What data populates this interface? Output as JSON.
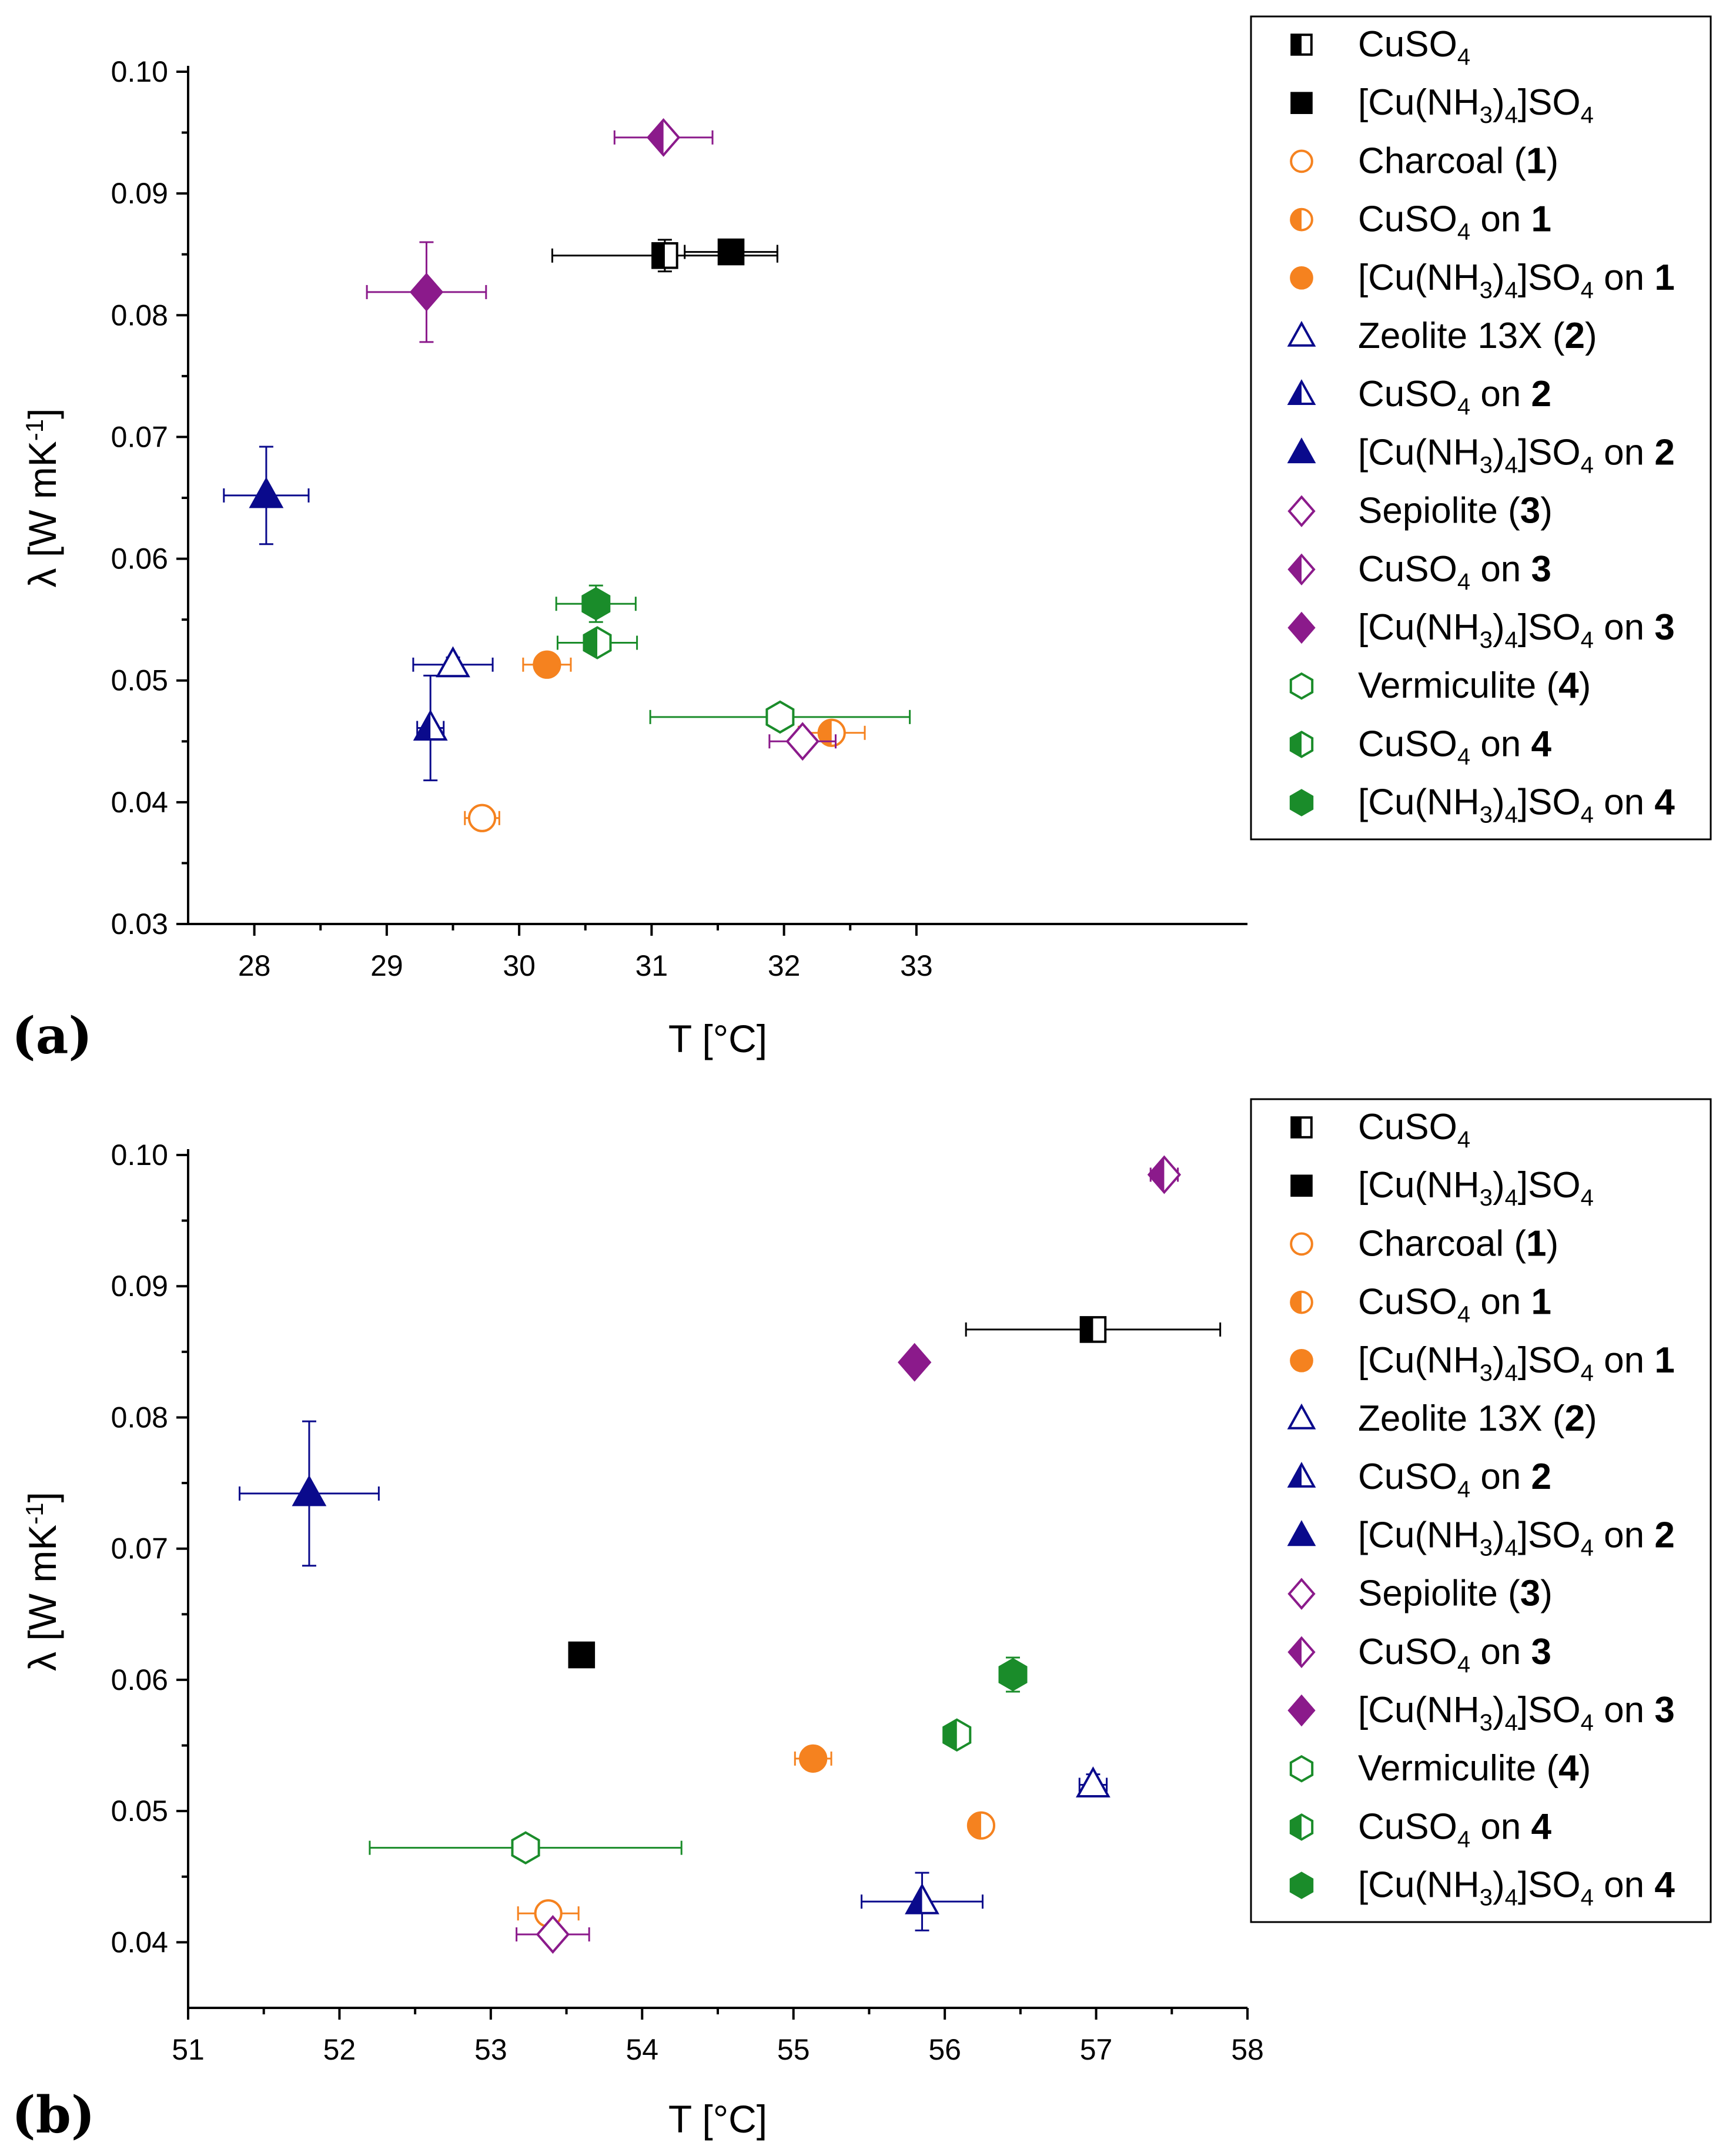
{
  "colors": {
    "black": "#000000",
    "orange": "#F5821F",
    "navy": "#0A0A8C",
    "purple": "#8B1A8B",
    "green": "#1A8C2A"
  },
  "legend_entries": [
    {
      "label": "CuSO4",
      "marker": "square",
      "fill": "half",
      "color": "black"
    },
    {
      "label": "[Cu(NH3)4]SO4",
      "marker": "square",
      "fill": "full",
      "color": "black"
    },
    {
      "label": "Charcoal (1)",
      "marker": "circle",
      "fill": "open",
      "color": "orange"
    },
    {
      "label": "CuSO4 on 1",
      "marker": "circle",
      "fill": "half",
      "color": "orange"
    },
    {
      "label": "[Cu(NH3)4]SO4 on 1",
      "marker": "circle",
      "fill": "full",
      "color": "orange"
    },
    {
      "label": "Zeolite 13X (2)",
      "marker": "triangle",
      "fill": "open",
      "color": "navy"
    },
    {
      "label": "CuSO4 on 2",
      "marker": "triangle",
      "fill": "half",
      "color": "navy"
    },
    {
      "label": "[Cu(NH3)4]SO4 on 2",
      "marker": "triangle",
      "fill": "full",
      "color": "navy"
    },
    {
      "label": "Sepiolite (3)",
      "marker": "diamond",
      "fill": "open",
      "color": "purple"
    },
    {
      "label": "CuSO4 on 3",
      "marker": "diamond",
      "fill": "half",
      "color": "purple"
    },
    {
      "label": "[Cu(NH3)4]SO4 on 3",
      "marker": "diamond",
      "fill": "full",
      "color": "purple"
    },
    {
      "label": "Vermiculite (4)",
      "marker": "hexagon",
      "fill": "open",
      "color": "green"
    },
    {
      "label": "CuSO4 on 4",
      "marker": "hexagon",
      "fill": "half",
      "color": "green"
    },
    {
      "label": "[Cu(NH3)4]SO4 on 4",
      "marker": "hexagon",
      "fill": "full",
      "color": "green"
    }
  ],
  "chart_data": [
    {
      "type": "scatter",
      "panel_label": "(a)",
      "xlabel": "T [°C]",
      "ylabel": "λ [W mK-1]",
      "xlim": [
        27.5,
        35.5
      ],
      "ylim": [
        0.03,
        0.1
      ],
      "xticks": [
        28,
        29,
        30,
        31,
        32,
        33
      ],
      "yticks": [
        0.03,
        0.04,
        0.05,
        0.06,
        0.07,
        0.08,
        0.09,
        0.1
      ],
      "ytick_labels": [
        "0.03",
        "0.04",
        "0.05",
        "0.06",
        "0.07",
        "0.08",
        "0.09",
        "0.10"
      ],
      "points": [
        {
          "series": "CuSO4",
          "x": 31.1,
          "y": 0.0849,
          "xerr": 0.85,
          "yerr": 0.0013
        },
        {
          "series": "[Cu(NH3)4]SO4",
          "x": 31.6,
          "y": 0.0852,
          "xerr": 0.35,
          "yerr": 0.0006
        },
        {
          "series": "Charcoal (1)",
          "x": 29.72,
          "y": 0.0387,
          "xerr": 0.13,
          "yerr": 0.0006
        },
        {
          "series": "CuSO4 on 1",
          "x": 32.36,
          "y": 0.0457,
          "xerr": 0.25,
          "yerr": 0.0006
        },
        {
          "series": "[Cu(NH3)4]SO4 on 1",
          "x": 30.21,
          "y": 0.0513,
          "xerr": 0.18,
          "yerr": 0.0006
        },
        {
          "series": "Zeolite 13X (2)",
          "x": 29.5,
          "y": 0.0513,
          "xerr": 0.3,
          "yerr": 0.0006
        },
        {
          "series": "CuSO4 on 2",
          "x": 29.33,
          "y": 0.0461,
          "xerr": 0.1,
          "yerr": 0.0043
        },
        {
          "series": "[Cu(NH3)4]SO4 on 2",
          "x": 28.09,
          "y": 0.0652,
          "xerr": 0.32,
          "yerr": 0.004
        },
        {
          "series": "Sepiolite (3)",
          "x": 32.14,
          "y": 0.045,
          "xerr": 0.25,
          "yerr": 0.0006
        },
        {
          "series": "CuSO4 on 3",
          "x": 31.09,
          "y": 0.0946,
          "xerr": 0.37,
          "yerr": 0.0006
        },
        {
          "series": "[Cu(NH3)4]SO4 on 3",
          "x": 29.3,
          "y": 0.0819,
          "xerr": 0.45,
          "yerr": 0.0041
        },
        {
          "series": "Vermiculite (4)",
          "x": 31.97,
          "y": 0.047,
          "xerr": 0.98,
          "yerr": 0.0006
        },
        {
          "series": "CuSO4 on 4",
          "x": 30.59,
          "y": 0.0531,
          "xerr": 0.3,
          "yerr": 0.0006
        },
        {
          "series": "[Cu(NH3)4]SO4 on 4",
          "x": 30.58,
          "y": 0.0563,
          "xerr": 0.3,
          "yerr": 0.0015
        }
      ]
    },
    {
      "type": "scatter",
      "panel_label": "(b)",
      "xlabel": "T [°C]",
      "ylabel": "λ [W mK-1]",
      "xlim": [
        51,
        58
      ],
      "ylim": [
        0.035,
        0.1
      ],
      "xticks": [
        51,
        52,
        53,
        54,
        55,
        56,
        57,
        58
      ],
      "yticks": [
        0.04,
        0.05,
        0.06,
        0.07,
        0.08,
        0.09,
        0.1
      ],
      "ytick_labels": [
        "0.04",
        "0.05",
        "0.06",
        "0.07",
        "0.08",
        "0.09",
        "0.10"
      ],
      "points": [
        {
          "series": "CuSO4",
          "x": 56.98,
          "y": 0.0867,
          "xerr": 0.84,
          "yerr": 0.0006
        },
        {
          "series": "[Cu(NH3)4]SO4",
          "x": 53.6,
          "y": 0.0619,
          "xerr": 0.0,
          "yerr": 0.0
        },
        {
          "series": "Charcoal (1)",
          "x": 53.38,
          "y": 0.0422,
          "xerr": 0.2,
          "yerr": 0.0006
        },
        {
          "series": "CuSO4 on 1",
          "x": 56.24,
          "y": 0.0489,
          "xerr": 0.06,
          "yerr": 0.0006
        },
        {
          "series": "[Cu(NH3)4]SO4 on 1",
          "x": 55.13,
          "y": 0.054,
          "xerr": 0.12,
          "yerr": 0.0006
        },
        {
          "series": "Zeolite 13X (2)",
          "x": 56.98,
          "y": 0.052,
          "xerr": 0.09,
          "yerr": 0.0008
        },
        {
          "series": "CuSO4 on 2",
          "x": 55.85,
          "y": 0.0431,
          "xerr": 0.4,
          "yerr": 0.0022
        },
        {
          "series": "[Cu(NH3)4]SO4 on 2",
          "x": 51.8,
          "y": 0.0742,
          "xerr": 0.46,
          "yerr": 0.0055
        },
        {
          "series": "Sepiolite (3)",
          "x": 53.41,
          "y": 0.0406,
          "xerr": 0.24,
          "yerr": 0.0006
        },
        {
          "series": "CuSO4 on 3",
          "x": 57.45,
          "y": 0.0985,
          "xerr": 0.09,
          "yerr": 0.0006
        },
        {
          "series": "[Cu(NH3)4]SO4 on 3",
          "x": 55.8,
          "y": 0.0842,
          "xerr": 0.0,
          "yerr": 0.0
        },
        {
          "series": "Vermiculite (4)",
          "x": 53.23,
          "y": 0.0472,
          "xerr": 1.03,
          "yerr": 0.0006
        },
        {
          "series": "CuSO4 on 4",
          "x": 56.08,
          "y": 0.0558,
          "xerr": 0.08,
          "yerr": 0.0006
        },
        {
          "series": "[Cu(NH3)4]SO4 on 4",
          "x": 56.45,
          "y": 0.0604,
          "xerr": 0.08,
          "yerr": 0.0013
        }
      ]
    }
  ]
}
